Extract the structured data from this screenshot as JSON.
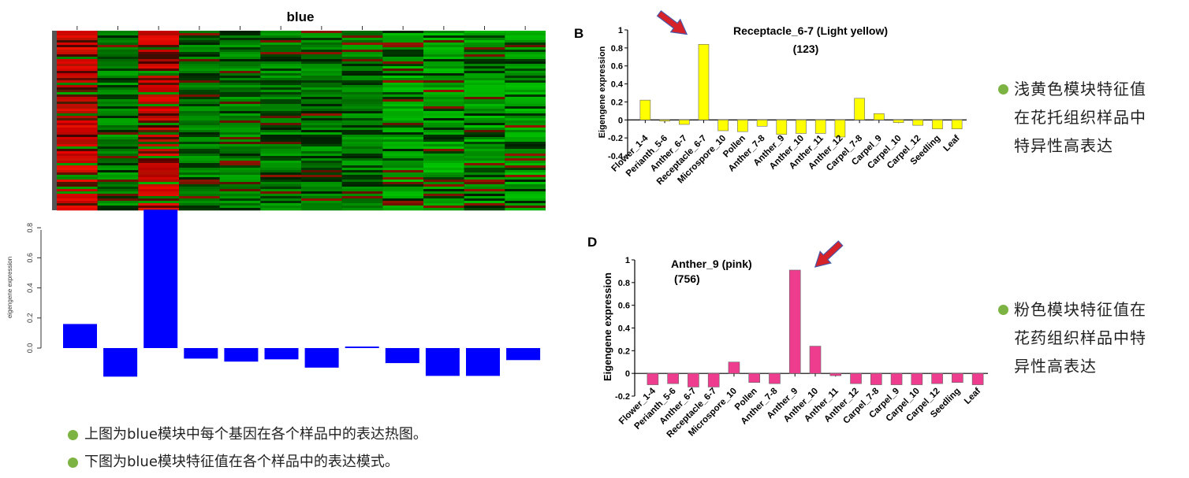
{
  "chart_data": [
    {
      "type": "heatmap",
      "title": "blue",
      "columns": 12,
      "low_color": "#00a000",
      "mid_color": "#000000",
      "high_color": "#e01010",
      "red_columns": [
        0,
        2
      ]
    },
    {
      "type": "bar",
      "title": "",
      "ylabel": "eigengene expression",
      "ylim": [
        -0.2,
        0.9
      ],
      "yticks": [
        "0.0",
        "0.2",
        "0.4",
        "0.6",
        "0.8"
      ],
      "color": "#0000ff",
      "values": [
        0.16,
        -0.19,
        0.92,
        -0.07,
        -0.09,
        -0.075,
        -0.13,
        0.01,
        -0.1,
        -0.185,
        -0.185,
        -0.08
      ]
    },
    {
      "type": "bar",
      "panel_label": "B",
      "title": "Receptacle_6-7 (Light yellow)",
      "subtitle": "(123)",
      "ylabel": "Eigengene expression",
      "ylim": [
        -0.4,
        1
      ],
      "yticks": [
        "1",
        "0.8",
        "0.6",
        "0.4",
        "0.2",
        "0",
        "-0.2",
        "-0.4"
      ],
      "color": "#ffff00",
      "categories": [
        "Flower_1-4",
        "Perianth_5-6",
        "Anther_6-7",
        "Receptacle_6-7",
        "Microspore_10",
        "Pollen",
        "Anther_7-8",
        "Anther_9",
        "Anther_10",
        "Anther_11",
        "Anther_12",
        "Carpel_7-8",
        "Carpel_9",
        "Carpel_10",
        "Carpel_12",
        "Seedling",
        "Leaf"
      ],
      "values": [
        0.22,
        -0.01,
        -0.05,
        0.84,
        -0.12,
        -0.13,
        -0.07,
        -0.16,
        -0.15,
        -0.15,
        -0.19,
        0.24,
        0.07,
        -0.03,
        -0.06,
        -0.1,
        -0.1
      ]
    },
    {
      "type": "bar",
      "panel_label": "D",
      "title": "Anther_9 (pink)",
      "subtitle": "(756)",
      "ylabel": "Eigengene expression",
      "ylim": [
        -0.2,
        1
      ],
      "yticks": [
        "1",
        "0.8",
        "0.6",
        "0.4",
        "0.2",
        "0",
        "-0.2"
      ],
      "color": "#ee3d8f",
      "categories": [
        "Flower_1-4",
        "Perianth_5-6",
        "Anther_6-7",
        "Receptacle_6-7",
        "Microspore_10",
        "Pollen",
        "Anther_7-8",
        "Anther_9",
        "Anther_10",
        "Anther_11",
        "Anther_12",
        "Carpel_7-8",
        "Carpel_9",
        "Carpel_10",
        "Carpel_12",
        "Seedling",
        "Leaf"
      ],
      "values": [
        -0.1,
        -0.09,
        -0.12,
        -0.12,
        0.1,
        -0.08,
        -0.09,
        0.91,
        0.24,
        -0.02,
        -0.09,
        -0.1,
        -0.1,
        -0.1,
        -0.09,
        -0.08,
        -0.1
      ]
    }
  ],
  "annotations": {
    "yellow": "浅黄色模块特征值在花托组织样品中特异性高表达",
    "pink": "粉色模块特征值在花药组织样品中特异性高表达",
    "note1": "上图为blue模块中每个基因在各个样品中的表达热图。",
    "note2": "下图为blue模块特征值在各个样品中的表达模式。"
  },
  "colors": {
    "bullet": "#7cb342",
    "arrow_fill": "#d6232a",
    "arrow_edge": "#4a57a8"
  }
}
